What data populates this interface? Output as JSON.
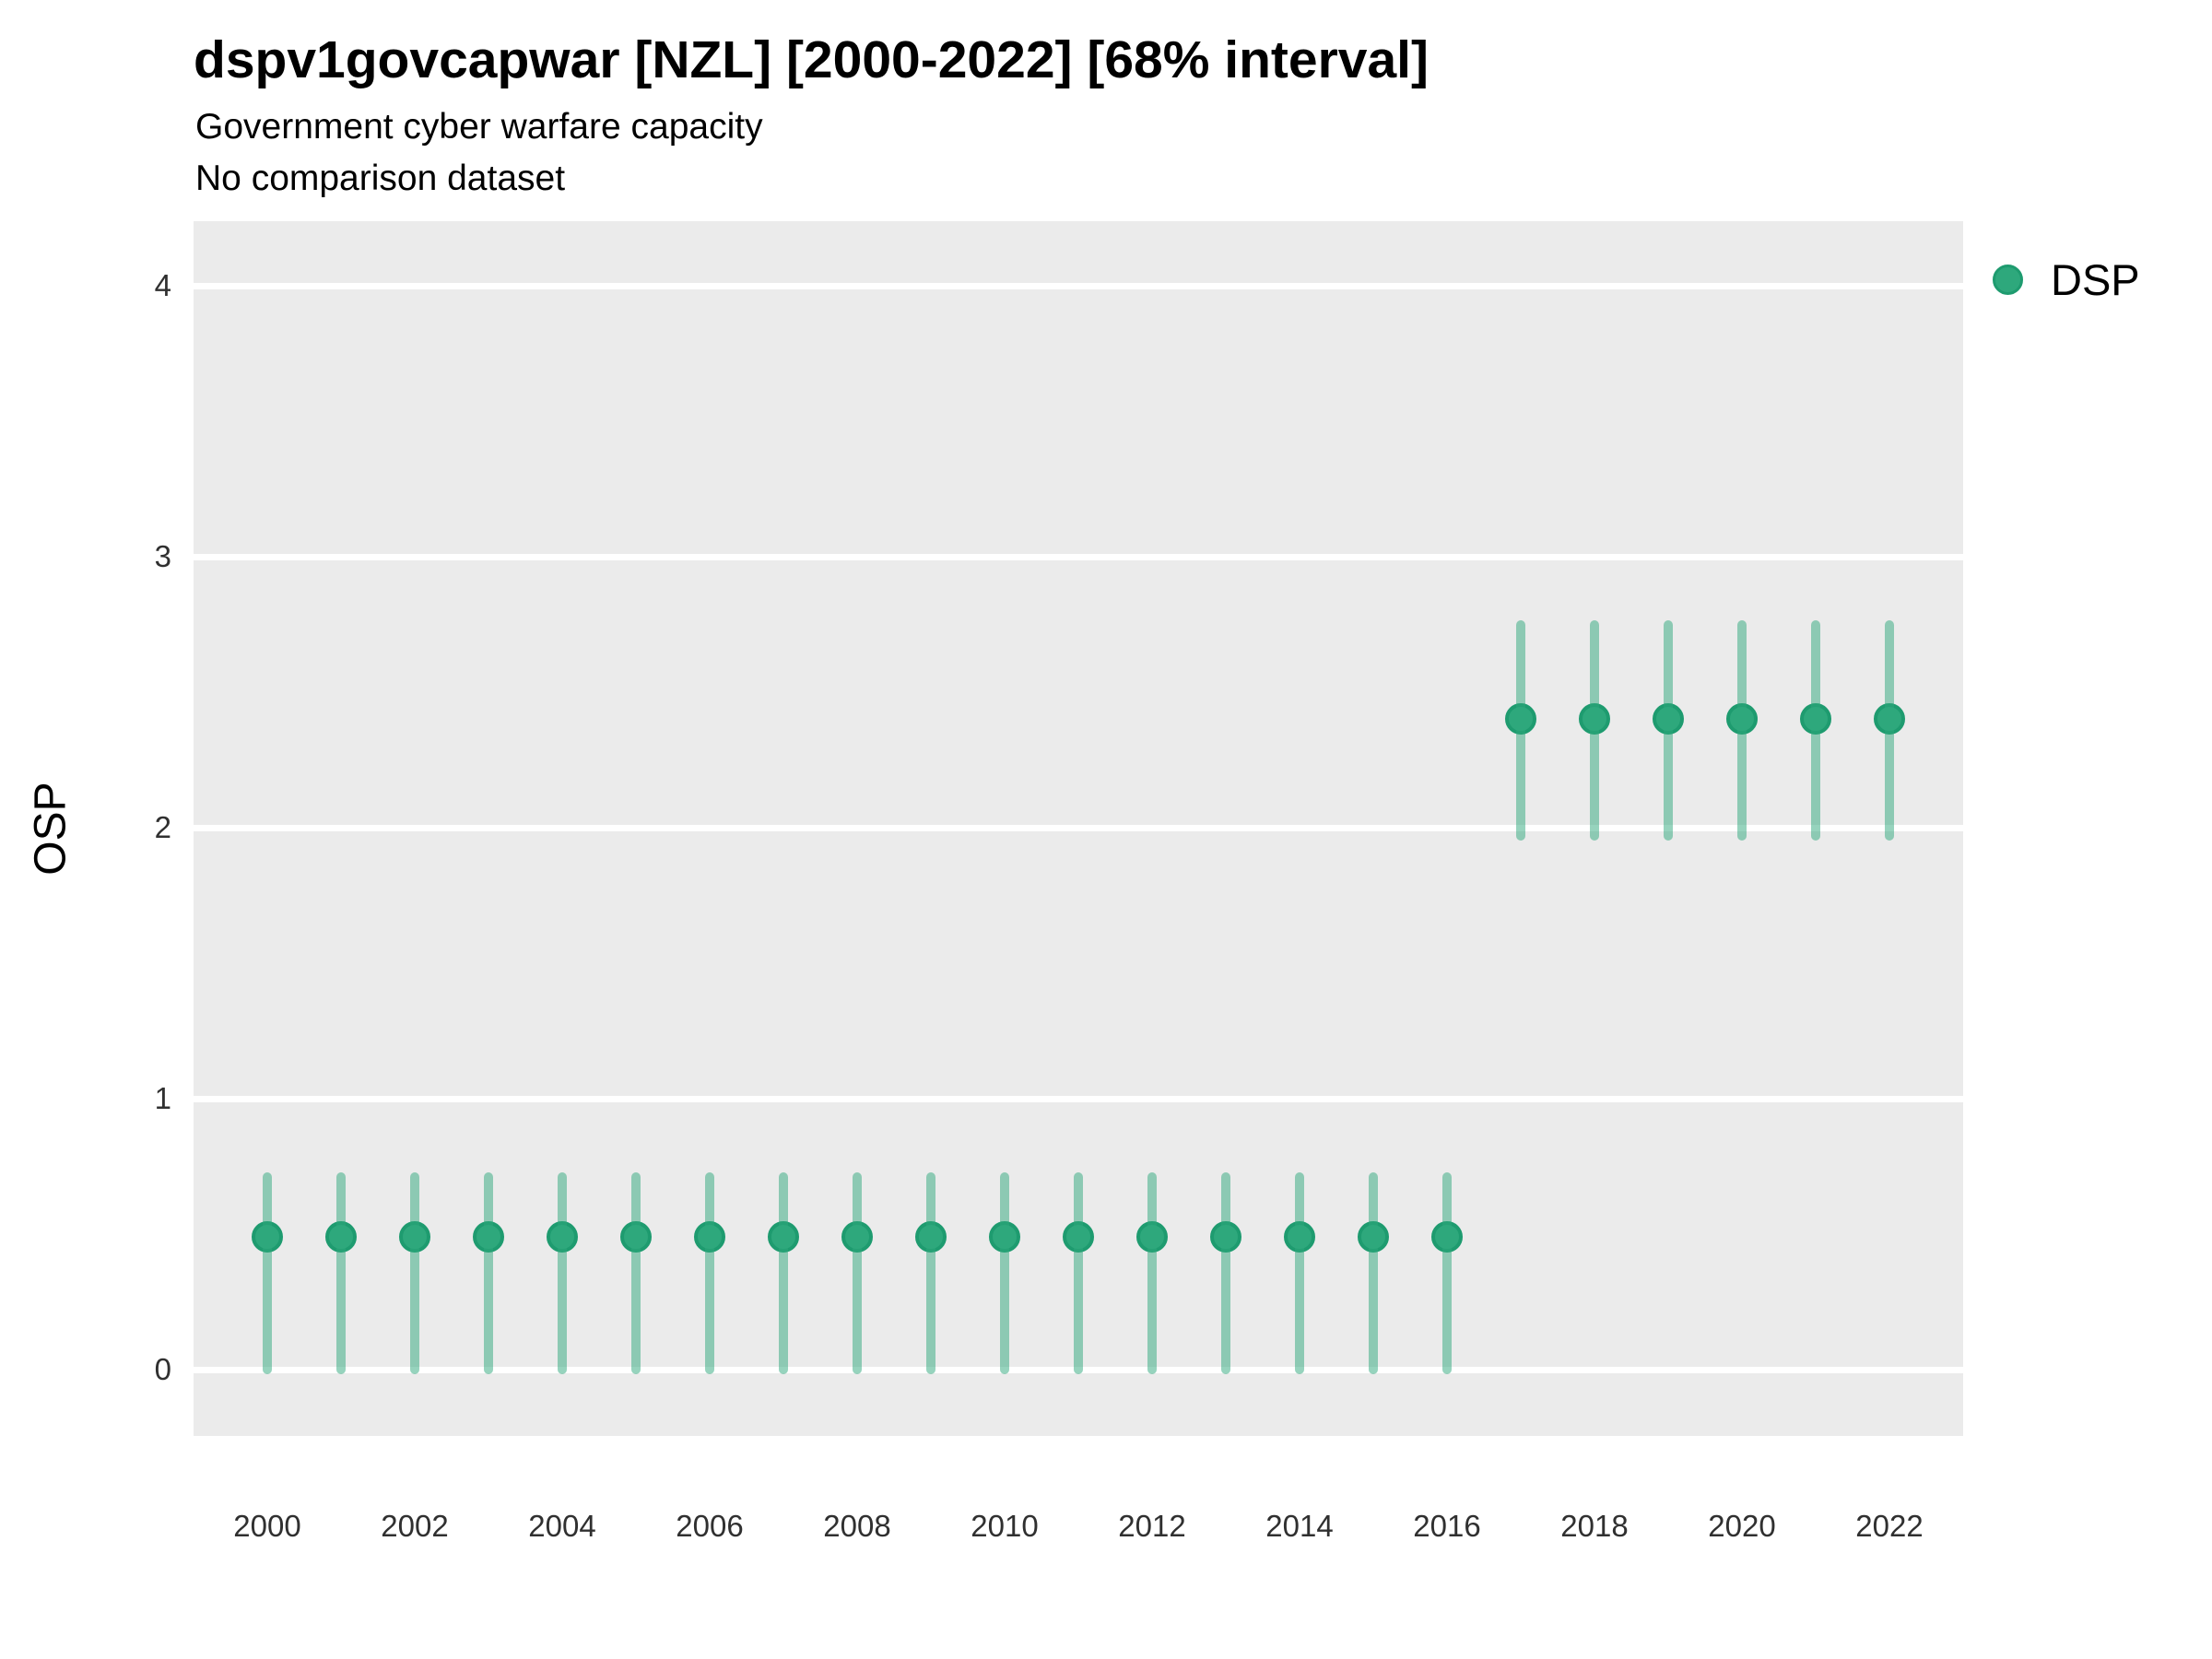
{
  "header": {
    "title": "dspv1govcapwar [NZL] [2000-2022] [68% interval]",
    "subtitle1": "Government cyber warfare capacity",
    "subtitle2": "No comparison dataset"
  },
  "legend": {
    "position": "right",
    "items": [
      {
        "label": "DSP",
        "marker": "circle",
        "color": "#2EA87C"
      }
    ]
  },
  "colors": {
    "point_fill": "#2EA87C",
    "point_stroke": "#1E9B6F",
    "interval": "rgba(46,168,124,0.5)",
    "panel_bg": "#EBEBEB",
    "grid": "#FFFFFF",
    "text": "#000000",
    "tick_text": "#303030"
  },
  "chart_data": {
    "type": "scatter",
    "variant": "pointrange-68pct-interval",
    "title": "dspv1govcapwar [NZL] [2000-2022] [68% interval]",
    "subtitle": [
      "Government cyber warfare capacity",
      "No comparison dataset"
    ],
    "xlabel": "",
    "ylabel": "OSP",
    "xlim": [
      1999,
      2023
    ],
    "ylim": [
      -0.25,
      4.25
    ],
    "grid": "horizontal major gridlines only, white on gray panel",
    "legend_position": "right",
    "x_ticks": [
      2000,
      2002,
      2004,
      2006,
      2008,
      2010,
      2012,
      2014,
      2016,
      2018,
      2020,
      2022
    ],
    "y_ticks": [
      0,
      1,
      2,
      3,
      4
    ],
    "series": [
      {
        "name": "DSP",
        "points": [
          {
            "year": 2000,
            "median": 0.49,
            "lo": 0.0,
            "hi": 0.71
          },
          {
            "year": 2001,
            "median": 0.49,
            "lo": 0.0,
            "hi": 0.71
          },
          {
            "year": 2002,
            "median": 0.49,
            "lo": 0.0,
            "hi": 0.71
          },
          {
            "year": 2003,
            "median": 0.49,
            "lo": 0.0,
            "hi": 0.71
          },
          {
            "year": 2004,
            "median": 0.49,
            "lo": 0.0,
            "hi": 0.71
          },
          {
            "year": 2005,
            "median": 0.49,
            "lo": 0.0,
            "hi": 0.71
          },
          {
            "year": 2006,
            "median": 0.49,
            "lo": 0.0,
            "hi": 0.71
          },
          {
            "year": 2007,
            "median": 0.49,
            "lo": 0.0,
            "hi": 0.71
          },
          {
            "year": 2008,
            "median": 0.49,
            "lo": 0.0,
            "hi": 0.71
          },
          {
            "year": 2009,
            "median": 0.49,
            "lo": 0.0,
            "hi": 0.71
          },
          {
            "year": 2010,
            "median": 0.49,
            "lo": 0.0,
            "hi": 0.71
          },
          {
            "year": 2011,
            "median": 0.49,
            "lo": 0.0,
            "hi": 0.71
          },
          {
            "year": 2012,
            "median": 0.49,
            "lo": 0.0,
            "hi": 0.71
          },
          {
            "year": 2013,
            "median": 0.49,
            "lo": 0.0,
            "hi": 0.71
          },
          {
            "year": 2014,
            "median": 0.49,
            "lo": 0.0,
            "hi": 0.71
          },
          {
            "year": 2015,
            "median": 0.49,
            "lo": 0.0,
            "hi": 0.71
          },
          {
            "year": 2016,
            "median": 0.49,
            "lo": 0.0,
            "hi": 0.71
          },
          {
            "year": 2017,
            "median": 2.4,
            "lo": 1.97,
            "hi": 2.75
          },
          {
            "year": 2018,
            "median": 2.4,
            "lo": 1.97,
            "hi": 2.75
          },
          {
            "year": 2019,
            "median": 2.4,
            "lo": 1.97,
            "hi": 2.75
          },
          {
            "year": 2020,
            "median": 2.4,
            "lo": 1.97,
            "hi": 2.75
          },
          {
            "year": 2021,
            "median": 2.4,
            "lo": 1.97,
            "hi": 2.75
          },
          {
            "year": 2022,
            "median": 2.4,
            "lo": 1.97,
            "hi": 2.75
          }
        ]
      }
    ]
  }
}
